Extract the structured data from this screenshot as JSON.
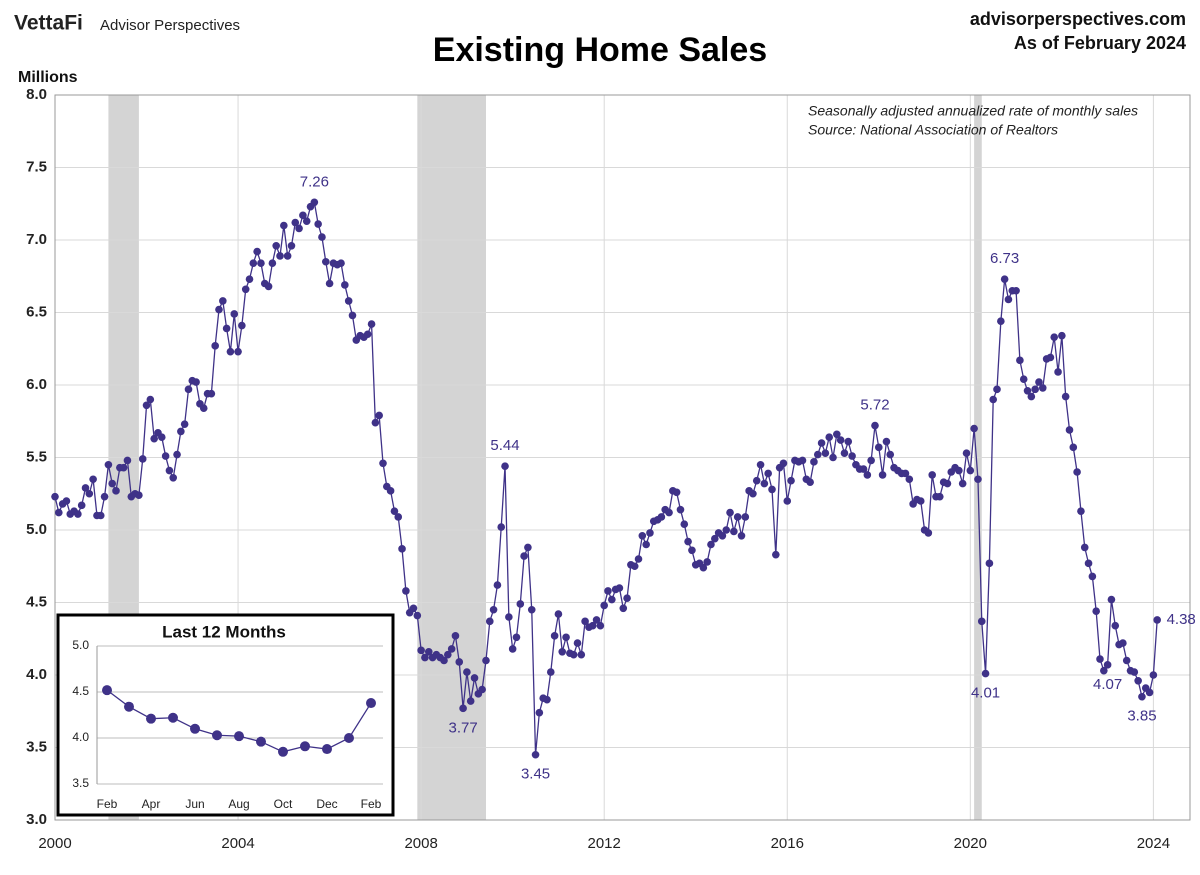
{
  "brand": {
    "logo": "VettaFi",
    "name": "Advisor Perspectives",
    "site": "advisorperspectives.com",
    "asof": "As of February 2024"
  },
  "chart_data": [
    {
      "type": "line",
      "title": "Existing Home Sales",
      "y_label": "Millions",
      "notes": [
        "Seasonally adjusted annualized rate of monthly sales",
        "Source: National Association of Realtors"
      ],
      "xlim": [
        2000,
        2024.8
      ],
      "xticks": [
        2000,
        2004,
        2008,
        2012,
        2016,
        2020,
        2024
      ],
      "ylim": [
        3,
        8
      ],
      "yticks": [
        {
          "value": 3,
          "label": "3.0"
        },
        3.5,
        {
          "value": 4,
          "label": "4.0"
        },
        4.5,
        {
          "value": 5,
          "label": "5.0"
        },
        5.5,
        {
          "value": 6,
          "label": "6.0"
        },
        6.5,
        {
          "value": 7,
          "label": "7.0"
        },
        7.5,
        {
          "value": 8,
          "label": "8.0"
        }
      ],
      "grid": true,
      "recessions": [
        [
          2001.167,
          2001.833
        ],
        [
          2007.917,
          2009.417
        ],
        [
          2020.083,
          2020.25
        ]
      ],
      "recession_color": "#d4d4d4",
      "series": [
        {
          "name": "Existing Home Sales",
          "color": "#3f3288",
          "x": [
            2000,
            2000.083,
            2000.167,
            2000.25,
            2000.333,
            2000.417,
            2000.5,
            2000.583,
            2000.667,
            2000.75,
            2000.833,
            2000.917,
            2001,
            2001.083,
            2001.167,
            2001.25,
            2001.333,
            2001.417,
            2001.5,
            2001.583,
            2001.667,
            2001.75,
            2001.833,
            2001.917,
            2002,
            2002.083,
            2002.167,
            2002.25,
            2002.333,
            2002.417,
            2002.5,
            2002.583,
            2002.667,
            2002.75,
            2002.833,
            2002.917,
            2003,
            2003.083,
            2003.167,
            2003.25,
            2003.333,
            2003.417,
            2003.5,
            2003.583,
            2003.667,
            2003.75,
            2003.833,
            2003.917,
            2004,
            2004.083,
            2004.167,
            2004.25,
            2004.333,
            2004.417,
            2004.5,
            2004.583,
            2004.667,
            2004.75,
            2004.833,
            2004.917,
            2005,
            2005.083,
            2005.167,
            2005.25,
            2005.333,
            2005.417,
            2005.5,
            2005.583,
            2005.667,
            2005.75,
            2005.833,
            2005.917,
            2006,
            2006.083,
            2006.167,
            2006.25,
            2006.333,
            2006.417,
            2006.5,
            2006.583,
            2006.667,
            2006.75,
            2006.833,
            2006.917,
            2007,
            2007.083,
            2007.167,
            2007.25,
            2007.333,
            2007.417,
            2007.5,
            2007.583,
            2007.667,
            2007.75,
            2007.833,
            2007.917,
            2008,
            2008.083,
            2008.167,
            2008.25,
            2008.333,
            2008.417,
            2008.5,
            2008.583,
            2008.667,
            2008.75,
            2008.833,
            2008.917,
            2009,
            2009.083,
            2009.167,
            2009.25,
            2009.333,
            2009.417,
            2009.5,
            2009.583,
            2009.667,
            2009.75,
            2009.833,
            2009.917,
            2010,
            2010.083,
            2010.167,
            2010.25,
            2010.333,
            2010.417,
            2010.5,
            2010.583,
            2010.667,
            2010.75,
            2010.833,
            2010.917,
            2011,
            2011.083,
            2011.167,
            2011.25,
            2011.333,
            2011.417,
            2011.5,
            2011.583,
            2011.667,
            2011.75,
            2011.833,
            2011.917,
            2012,
            2012.083,
            2012.167,
            2012.25,
            2012.333,
            2012.417,
            2012.5,
            2012.583,
            2012.667,
            2012.75,
            2012.833,
            2012.917,
            2013,
            2013.083,
            2013.167,
            2013.25,
            2013.333,
            2013.417,
            2013.5,
            2013.583,
            2013.667,
            2013.75,
            2013.833,
            2013.917,
            2014,
            2014.083,
            2014.167,
            2014.25,
            2014.333,
            2014.417,
            2014.5,
            2014.583,
            2014.667,
            2014.75,
            2014.833,
            2014.917,
            2015,
            2015.083,
            2015.167,
            2015.25,
            2015.333,
            2015.417,
            2015.5,
            2015.583,
            2015.667,
            2015.75,
            2015.833,
            2015.917,
            2016,
            2016.083,
            2016.167,
            2016.25,
            2016.333,
            2016.417,
            2016.5,
            2016.583,
            2016.667,
            2016.75,
            2016.833,
            2016.917,
            2017,
            2017.083,
            2017.167,
            2017.25,
            2017.333,
            2017.417,
            2017.5,
            2017.583,
            2017.667,
            2017.75,
            2017.833,
            2017.917,
            2018,
            2018.083,
            2018.167,
            2018.25,
            2018.333,
            2018.417,
            2018.5,
            2018.583,
            2018.667,
            2018.75,
            2018.833,
            2018.917,
            2019,
            2019.083,
            2019.167,
            2019.25,
            2019.333,
            2019.417,
            2019.5,
            2019.583,
            2019.667,
            2019.75,
            2019.833,
            2019.917,
            2020,
            2020.083,
            2020.167,
            2020.25,
            2020.333,
            2020.417,
            2020.5,
            2020.583,
            2020.667,
            2020.75,
            2020.833,
            2020.917,
            2021,
            2021.083,
            2021.167,
            2021.25,
            2021.333,
            2021.417,
            2021.5,
            2021.583,
            2021.667,
            2021.75,
            2021.833,
            2021.917,
            2022,
            2022.083,
            2022.167,
            2022.25,
            2022.333,
            2022.417,
            2022.5,
            2022.583,
            2022.667,
            2022.75,
            2022.833,
            2022.917,
            2023,
            2023.083,
            2023.167,
            2023.25,
            2023.333,
            2023.417,
            2023.5,
            2023.583,
            2023.667,
            2023.75,
            2023.833,
            2023.917,
            2024,
            2024.083
          ],
          "values": [
            5.23,
            5.12,
            5.18,
            5.2,
            5.11,
            5.13,
            5.11,
            5.17,
            5.29,
            5.25,
            5.35,
            5.1,
            5.1,
            5.23,
            5.45,
            5.32,
            5.27,
            5.43,
            5.43,
            5.48,
            5.23,
            5.25,
            5.24,
            5.49,
            5.86,
            5.9,
            5.63,
            5.67,
            5.64,
            5.51,
            5.41,
            5.36,
            5.52,
            5.68,
            5.73,
            5.97,
            6.03,
            6.02,
            5.87,
            5.84,
            5.94,
            5.94,
            6.27,
            6.52,
            6.58,
            6.39,
            6.23,
            6.49,
            6.23,
            6.41,
            6.66,
            6.73,
            6.84,
            6.92,
            6.84,
            6.7,
            6.68,
            6.84,
            6.96,
            6.89,
            7.1,
            6.89,
            6.96,
            7.12,
            7.08,
            7.17,
            7.13,
            7.23,
            7.26,
            7.11,
            7.02,
            6.85,
            6.7,
            6.84,
            6.83,
            6.84,
            6.69,
            6.58,
            6.48,
            6.31,
            6.34,
            6.33,
            6.35,
            6.42,
            5.74,
            5.79,
            5.46,
            5.3,
            5.27,
            5.13,
            5.09,
            4.87,
            4.58,
            4.43,
            4.46,
            4.41,
            4.17,
            4.12,
            4.16,
            4.12,
            4.14,
            4.12,
            4.1,
            4.14,
            4.18,
            4.27,
            4.09,
            3.77,
            4.02,
            3.82,
            3.98,
            3.87,
            3.9,
            4.1,
            4.37,
            4.45,
            4.62,
            5.02,
            5.44,
            4.4,
            4.18,
            4.26,
            4.49,
            4.82,
            4.88,
            4.45,
            3.45,
            3.74,
            3.84,
            3.83,
            4.02,
            4.27,
            4.42,
            4.16,
            4.26,
            4.15,
            4.14,
            4.22,
            4.14,
            4.37,
            4.33,
            4.34,
            4.38,
            4.34,
            4.48,
            4.58,
            4.52,
            4.59,
            4.6,
            4.46,
            4.53,
            4.76,
            4.75,
            4.8,
            4.96,
            4.9,
            4.98,
            5.06,
            5.07,
            5.09,
            5.14,
            5.12,
            5.27,
            5.26,
            5.14,
            5.04,
            4.92,
            4.86,
            4.76,
            4.77,
            4.74,
            4.78,
            4.9,
            4.94,
            4.98,
            4.96,
            5,
            5.12,
            4.99,
            5.09,
            4.96,
            5.09,
            5.27,
            5.25,
            5.34,
            5.45,
            5.32,
            5.39,
            5.28,
            4.83,
            5.43,
            5.46,
            5.2,
            5.34,
            5.48,
            5.47,
            5.48,
            5.35,
            5.33,
            5.47,
            5.52,
            5.6,
            5.53,
            5.64,
            5.5,
            5.66,
            5.62,
            5.53,
            5.61,
            5.51,
            5.45,
            5.42,
            5.42,
            5.38,
            5.48,
            5.72,
            5.57,
            5.38,
            5.61,
            5.52,
            5.43,
            5.41,
            5.39,
            5.39,
            5.35,
            5.18,
            5.21,
            5.2,
            5,
            4.98,
            5.38,
            5.23,
            5.23,
            5.33,
            5.32,
            5.4,
            5.43,
            5.41,
            5.32,
            5.53,
            5.41,
            5.7,
            5.35,
            4.37,
            4.01,
            4.77,
            5.9,
            5.97,
            6.44,
            6.73,
            6.59,
            6.65,
            6.65,
            6.17,
            6.04,
            5.96,
            5.92,
            5.97,
            6.02,
            5.98,
            6.18,
            6.19,
            6.33,
            6.09,
            6.34,
            5.92,
            5.69,
            5.57,
            5.4,
            5.13,
            4.88,
            4.77,
            4.68,
            4.44,
            4.11,
            4.03,
            4.07,
            4.52,
            4.34,
            4.21,
            4.22,
            4.1,
            4.03,
            4.02,
            3.96,
            3.85,
            3.91,
            3.88,
            4,
            4.38
          ]
        }
      ],
      "annotations": [
        {
          "x": 2005.667,
          "value": 7.26
        },
        {
          "x": 2009.833,
          "value": 5.44
        },
        {
          "x": 2008.917,
          "value": 3.77
        },
        {
          "x": 2010.5,
          "value": 3.45
        },
        {
          "x": 2020.75,
          "value": 6.73
        },
        {
          "x": 2017.917,
          "value": 5.72
        },
        {
          "x": 2020.333,
          "value": 4.01
        },
        {
          "x": 2023,
          "value": 4.07
        },
        {
          "x": 2023.75,
          "value": 3.85
        },
        {
          "x": 2024.083,
          "value": 4.38
        }
      ]
    },
    {
      "type": "line",
      "title": "Last 12 Months",
      "categories": [
        "Feb",
        null,
        "Apr",
        null,
        "Jun",
        null,
        "Aug",
        null,
        "Oct",
        null,
        "Dec",
        null,
        "Feb"
      ],
      "values": [
        4.52,
        4.34,
        4.21,
        4.22,
        4.1,
        4.03,
        4.02,
        3.96,
        3.85,
        3.91,
        3.88,
        4,
        4.38
      ],
      "color": "#3f3288",
      "ylim": [
        3.5,
        5
      ],
      "yticks": [
        3.5,
        {
          "value": 4,
          "label": "4.0"
        },
        4.5,
        {
          "value": 5,
          "label": "5.0"
        }
      ],
      "grid": true
    }
  ]
}
